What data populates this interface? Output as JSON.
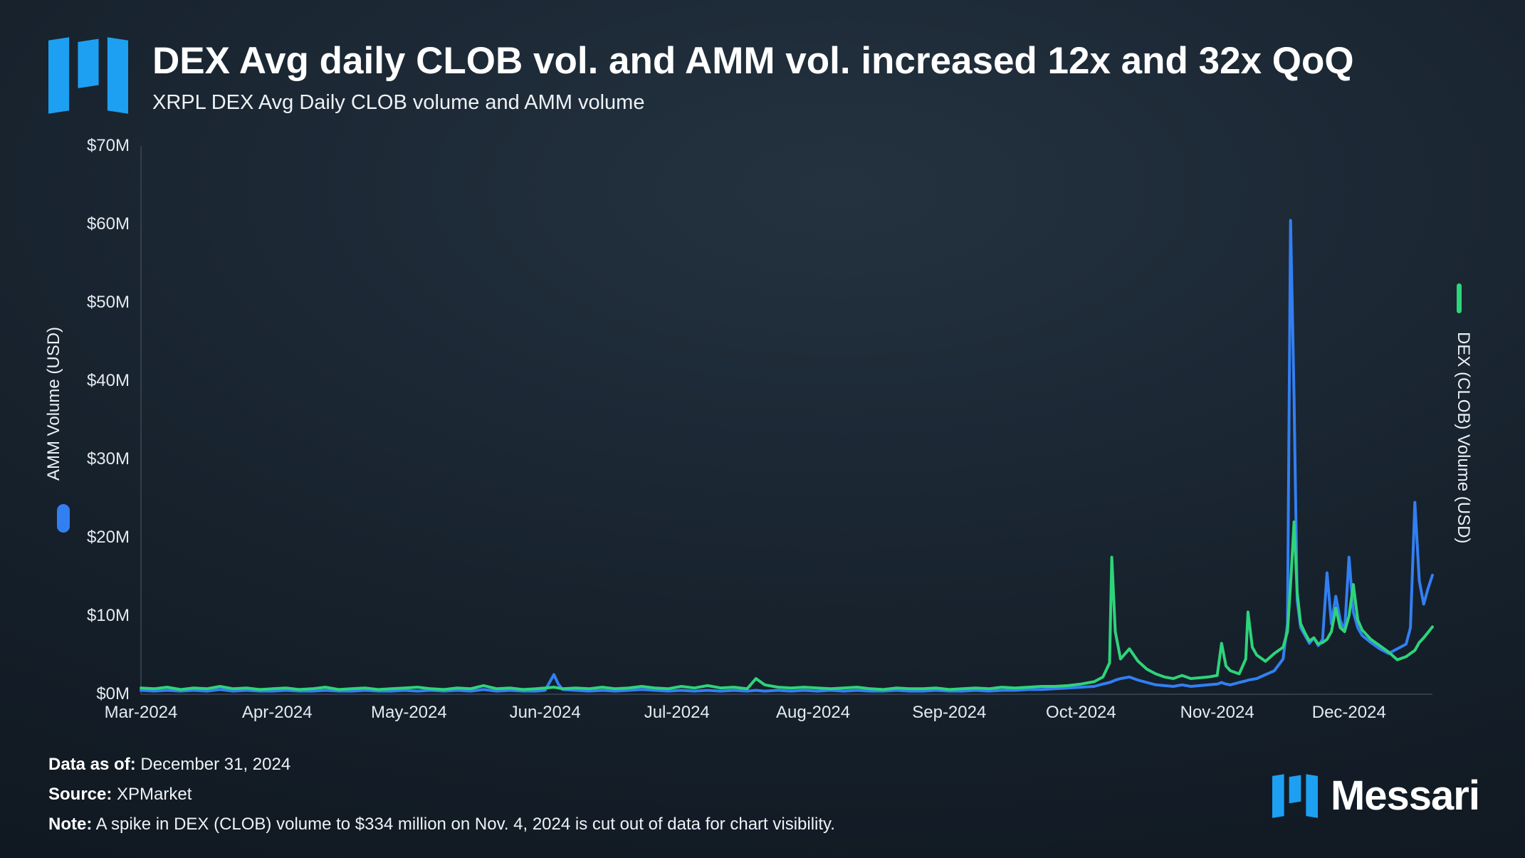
{
  "header": {
    "title": "DEX Avg daily CLOB vol. and AMM vol. increased 12x and 32x QoQ",
    "subtitle": "XRPL DEX Avg Daily CLOB volume and AMM volume"
  },
  "colors": {
    "background_dark": "#0b1118",
    "background_light": "#243240",
    "brand_blue": "#1da0f2",
    "amm_line_blue": "#327ff2",
    "clob_line_green": "#2ed47a",
    "text_primary": "#ffffff",
    "text_secondary": "#e4eaf0"
  },
  "chart_data": {
    "type": "line",
    "title": "XRPL DEX Avg Daily CLOB volume and AMM volume",
    "grid": "off",
    "x_axis": {
      "tick_labels": [
        "Mar-2024",
        "Apr-2024",
        "May-2024",
        "Jun-2024",
        "Jul-2024",
        "Aug-2024",
        "Sep-2024",
        "Oct-2024",
        "Nov-2024",
        "Dec-2024"
      ],
      "tick_days": [
        0,
        31,
        61,
        92,
        122,
        153,
        184,
        214,
        245,
        275
      ],
      "domain_days": [
        0,
        294
      ]
    },
    "left_axis": {
      "label": "AMM Volume (USD)",
      "tick_labels": [
        "$0M",
        "$10M",
        "$20M",
        "$30M",
        "$40M",
        "$50M",
        "$60M",
        "$70M"
      ],
      "range_musd": [
        0,
        70
      ]
    },
    "right_axis": {
      "label": "DEX (CLOB) Volume (USD)"
    },
    "series": [
      {
        "name": "AMM Volume (USD)",
        "axis": "left",
        "color": "#327ff2",
        "value_index": 1,
        "legend": "left-pill"
      },
      {
        "name": "DEX (CLOB) Volume (USD)",
        "axis": "right",
        "color": "#2ed47a",
        "value_index": 2,
        "legend": "right-line"
      }
    ],
    "points_day_amm_clob": [
      [
        0,
        0.5,
        0.8
      ],
      [
        3,
        0.4,
        0.7
      ],
      [
        6,
        0.5,
        0.9
      ],
      [
        9,
        0.4,
        0.6
      ],
      [
        12,
        0.5,
        0.8
      ],
      [
        15,
        0.4,
        0.7
      ],
      [
        18,
        0.6,
        1.0
      ],
      [
        21,
        0.4,
        0.7
      ],
      [
        24,
        0.5,
        0.8
      ],
      [
        27,
        0.4,
        0.6
      ],
      [
        30,
        0.4,
        0.7
      ],
      [
        33,
        0.5,
        0.8
      ],
      [
        36,
        0.4,
        0.6
      ],
      [
        39,
        0.4,
        0.7
      ],
      [
        42,
        0.5,
        0.9
      ],
      [
        45,
        0.4,
        0.6
      ],
      [
        48,
        0.4,
        0.7
      ],
      [
        51,
        0.5,
        0.8
      ],
      [
        54,
        0.4,
        0.6
      ],
      [
        57,
        0.4,
        0.7
      ],
      [
        60,
        0.5,
        0.8
      ],
      [
        63,
        0.4,
        0.9
      ],
      [
        66,
        0.5,
        0.7
      ],
      [
        69,
        0.4,
        0.6
      ],
      [
        72,
        0.5,
        0.8
      ],
      [
        75,
        0.4,
        0.7
      ],
      [
        78,
        0.6,
        1.1
      ],
      [
        81,
        0.4,
        0.7
      ],
      [
        84,
        0.5,
        0.8
      ],
      [
        87,
        0.4,
        0.6
      ],
      [
        90,
        0.4,
        0.7
      ],
      [
        92,
        0.5,
        0.8
      ],
      [
        94,
        2.5,
        0.9
      ],
      [
        95,
        1.3,
        0.8
      ],
      [
        96,
        0.6,
        0.7
      ],
      [
        99,
        0.5,
        0.8
      ],
      [
        102,
        0.4,
        0.7
      ],
      [
        105,
        0.5,
        0.9
      ],
      [
        108,
        0.4,
        0.7
      ],
      [
        111,
        0.5,
        0.8
      ],
      [
        114,
        0.6,
        1.0
      ],
      [
        117,
        0.5,
        0.8
      ],
      [
        120,
        0.4,
        0.7
      ],
      [
        123,
        0.5,
        1.0
      ],
      [
        126,
        0.4,
        0.8
      ],
      [
        129,
        0.5,
        1.1
      ],
      [
        132,
        0.4,
        0.8
      ],
      [
        135,
        0.5,
        0.9
      ],
      [
        138,
        0.4,
        0.7
      ],
      [
        140,
        0.5,
        2.0
      ],
      [
        142,
        0.4,
        1.2
      ],
      [
        145,
        0.5,
        0.9
      ],
      [
        148,
        0.4,
        0.8
      ],
      [
        151,
        0.5,
        0.9
      ],
      [
        154,
        0.4,
        0.8
      ],
      [
        157,
        0.5,
        0.7
      ],
      [
        160,
        0.4,
        0.8
      ],
      [
        163,
        0.5,
        0.9
      ],
      [
        166,
        0.4,
        0.7
      ],
      [
        169,
        0.4,
        0.6
      ],
      [
        172,
        0.5,
        0.8
      ],
      [
        175,
        0.4,
        0.7
      ],
      [
        178,
        0.4,
        0.7
      ],
      [
        181,
        0.5,
        0.8
      ],
      [
        184,
        0.4,
        0.6
      ],
      [
        187,
        0.4,
        0.7
      ],
      [
        190,
        0.5,
        0.8
      ],
      [
        193,
        0.4,
        0.7
      ],
      [
        196,
        0.5,
        0.9
      ],
      [
        199,
        0.5,
        0.8
      ],
      [
        202,
        0.6,
        0.9
      ],
      [
        205,
        0.6,
        1.0
      ],
      [
        208,
        0.7,
        1.0
      ],
      [
        211,
        0.8,
        1.1
      ],
      [
        214,
        0.9,
        1.3
      ],
      [
        217,
        1.0,
        1.6
      ],
      [
        219,
        1.3,
        2.2
      ],
      [
        220.5,
        1.5,
        4.0
      ],
      [
        221,
        1.6,
        17.5
      ],
      [
        221.8,
        1.8,
        8.0
      ],
      [
        223,
        2.0,
        4.5
      ],
      [
        225,
        2.2,
        5.8
      ],
      [
        227,
        1.8,
        4.2
      ],
      [
        229,
        1.5,
        3.2
      ],
      [
        231,
        1.2,
        2.6
      ],
      [
        233,
        1.1,
        2.2
      ],
      [
        235,
        1.0,
        2.0
      ],
      [
        237,
        1.2,
        2.4
      ],
      [
        239,
        1.0,
        2.0
      ],
      [
        241,
        1.1,
        2.1
      ],
      [
        243,
        1.2,
        2.2
      ],
      [
        245,
        1.3,
        2.4
      ],
      [
        246,
        1.5,
        6.5
      ],
      [
        247,
        1.3,
        3.6
      ],
      [
        248,
        1.2,
        3.0
      ],
      [
        250,
        1.5,
        2.6
      ],
      [
        251.5,
        1.7,
        4.5
      ],
      [
        252,
        1.8,
        10.5
      ],
      [
        253,
        1.9,
        6.0
      ],
      [
        254,
        2.0,
        5.0
      ],
      [
        256,
        2.5,
        4.2
      ],
      [
        258,
        3.0,
        5.2
      ],
      [
        260,
        4.5,
        6.0
      ],
      [
        261,
        9.0,
        8.0
      ],
      [
        261.7,
        60.5,
        14.0
      ],
      [
        262.5,
        38.0,
        22.0
      ],
      [
        263.2,
        12.0,
        13.0
      ],
      [
        264,
        8.5,
        9.0
      ],
      [
        265,
        7.5,
        7.8
      ],
      [
        266,
        6.5,
        6.8
      ],
      [
        267,
        7.2,
        7.2
      ],
      [
        268,
        6.2,
        6.4
      ],
      [
        269,
        7.0,
        6.6
      ],
      [
        270,
        15.5,
        7.0
      ],
      [
        271,
        9.0,
        8.0
      ],
      [
        272,
        12.5,
        11.0
      ],
      [
        273,
        9.5,
        8.5
      ],
      [
        274,
        8.0,
        8.0
      ],
      [
        275,
        17.5,
        10.0
      ],
      [
        276,
        10.5,
        14.0
      ],
      [
        277,
        8.5,
        9.5
      ],
      [
        278,
        7.5,
        8.2
      ],
      [
        280,
        6.6,
        7.0
      ],
      [
        282,
        5.8,
        6.2
      ],
      [
        284,
        5.2,
        5.4
      ],
      [
        286,
        5.8,
        4.4
      ],
      [
        288,
        6.4,
        4.8
      ],
      [
        289,
        8.5,
        5.2
      ],
      [
        290,
        24.5,
        5.6
      ],
      [
        291,
        14.5,
        6.6
      ],
      [
        292,
        11.5,
        7.2
      ],
      [
        293,
        13.5,
        7.9
      ],
      [
        294,
        15.2,
        8.6
      ]
    ]
  },
  "footer": {
    "data_as_of_label": "Data as of:",
    "data_as_of_value": "December 31, 2024",
    "source_label": "Source:",
    "source_value": "XPMarket",
    "note_label": "Note:",
    "note_value": "A spike in DEX (CLOB) volume to $334 million on Nov. 4, 2024 is cut out of data for chart visibility.",
    "brand": "Messari"
  }
}
